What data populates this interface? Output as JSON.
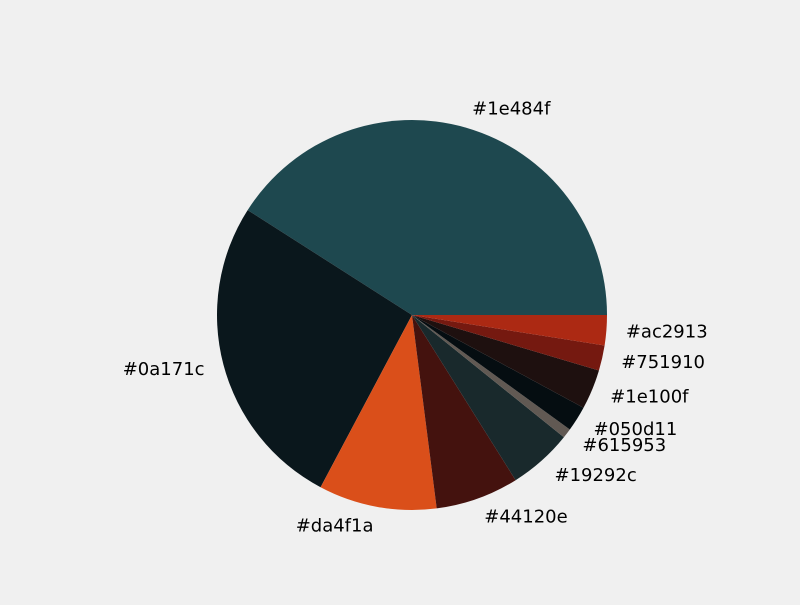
{
  "chart_data": {
    "type": "pie",
    "title": "",
    "start_angle": 0,
    "direction": "counterclockwise",
    "background": "#f0f0f0",
    "slices": [
      {
        "label": "#1e484f",
        "color": "#1e484f",
        "value": 41.0
      },
      {
        "label": "#0a171c",
        "color": "#0a171c",
        "value": 26.3
      },
      {
        "label": "#da4f1a",
        "color": "#da4f1a",
        "value": 9.8
      },
      {
        "label": "#44120e",
        "color": "#44120e",
        "value": 6.9
      },
      {
        "label": "#19292c",
        "color": "#19292c",
        "value": 5.3
      },
      {
        "label": "#615953",
        "color": "#615953",
        "value": 0.8
      },
      {
        "label": "#050d11",
        "color": "#050d11",
        "value": 2.1
      },
      {
        "label": "#1e100f",
        "color": "#1e100f",
        "value": 3.3
      },
      {
        "label": "#751910",
        "color": "#751910",
        "value": 2.1
      },
      {
        "label": "#ac2913",
        "color": "#ac2913",
        "value": 2.5
      }
    ]
  }
}
